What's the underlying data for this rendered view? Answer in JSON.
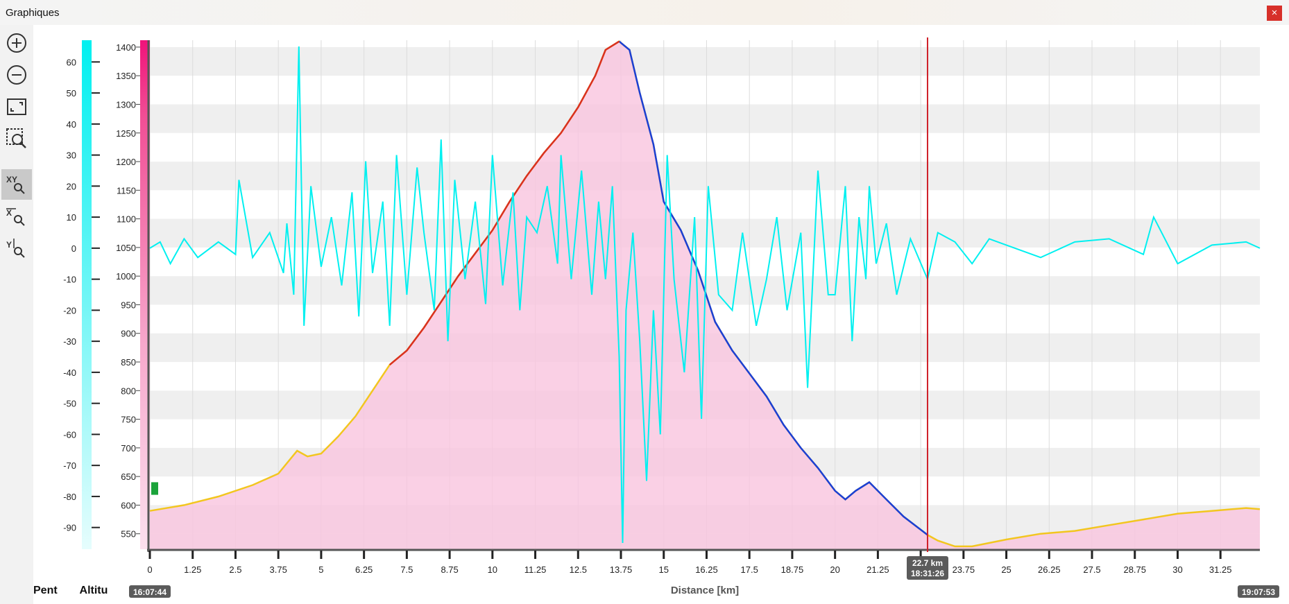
{
  "window": {
    "title": "Graphiques",
    "close_label": "×"
  },
  "toolbar": {
    "tools": [
      {
        "name": "zoom-in"
      },
      {
        "name": "zoom-out"
      },
      {
        "name": "fit-view"
      },
      {
        "name": "zoom-window"
      },
      {
        "name": "zoom-xy",
        "active": true
      },
      {
        "name": "zoom-x"
      },
      {
        "name": "zoom-y"
      }
    ]
  },
  "bottom_tabs": [
    "Pent",
    "Altitu"
  ],
  "chart_data": {
    "type": "area",
    "xlabel": "Distance [km]",
    "x_ticks": [
      "0",
      "1.25",
      "2.5",
      "3.75",
      "5",
      "6.25",
      "7.5",
      "8.75",
      "10",
      "11.25",
      "12.5",
      "13.75",
      "15",
      "16.25",
      "17.5",
      "18.75",
      "20",
      "21.25",
      "22.5",
      "23.75",
      "25",
      "26.25",
      "27.5",
      "28.75",
      "30",
      "31.25"
    ],
    "xlim": [
      0,
      32.4
    ],
    "y_left_ticks": [
      "60",
      "50",
      "40",
      "30",
      "20",
      "10",
      "0",
      "-10",
      "-20",
      "-30",
      "-40",
      "-50",
      "-60",
      "-70",
      "-80",
      "-90"
    ],
    "y_left_lim": [
      -97,
      67
    ],
    "y_right_ticks": [
      "1400",
      "1350",
      "1300",
      "1250",
      "1200",
      "1150",
      "1100",
      "1050",
      "1000",
      "950",
      "900",
      "850",
      "800",
      "750",
      "700",
      "650",
      "600",
      "550"
    ],
    "y_right_lim": [
      523,
      1412
    ],
    "start_time": "16:07:44",
    "end_time": "19:07:53",
    "cursor": {
      "distance": 22.7,
      "distance_label": "22.7 km",
      "time": "18:31:26"
    },
    "series": [
      {
        "color": "#f9c4de",
        "x": [
          0,
          1,
          2,
          3,
          3.75,
          4.3,
          4.6,
          5,
          5.5,
          6,
          6.5,
          7,
          7.5,
          8,
          8.5,
          9,
          9.5,
          10,
          10.5,
          11,
          11.5,
          12,
          12.5,
          13,
          13.3,
          13.7,
          14,
          14.3,
          14.7,
          15,
          15.5,
          16,
          16.5,
          17,
          17.5,
          18,
          18.5,
          19,
          19.5,
          20,
          20.3,
          20.6,
          21,
          21.5,
          22,
          22.7,
          23,
          23.5,
          24,
          25,
          26,
          27,
          28,
          29,
          30,
          31,
          32,
          32.4
        ],
        "y": [
          590,
          600,
          615,
          635,
          655,
          695,
          685,
          690,
          720,
          755,
          800,
          845,
          870,
          910,
          955,
          1000,
          1040,
          1080,
          1130,
          1175,
          1215,
          1250,
          1295,
          1350,
          1395,
          1410,
          1395,
          1320,
          1230,
          1130,
          1080,
          1010,
          920,
          870,
          830,
          790,
          740,
          700,
          665,
          625,
          610,
          625,
          640,
          610,
          580,
          548,
          538,
          528,
          528,
          540,
          550,
          555,
          565,
          575,
          585,
          590,
          595,
          593
        ]
      },
      {
        "color": "#00f0f0",
        "x": [
          0,
          0.3,
          0.6,
          1,
          1.4,
          2,
          2.5,
          2.6,
          3,
          3.5,
          3.9,
          4,
          4.2,
          4.35,
          4.5,
          4.7,
          5,
          5.3,
          5.6,
          5.9,
          6.1,
          6.3,
          6.5,
          6.8,
          7,
          7.2,
          7.5,
          7.8,
          8,
          8.3,
          8.5,
          8.7,
          8.9,
          9.2,
          9.5,
          9.8,
          10,
          10.3,
          10.6,
          10.8,
          11,
          11.3,
          11.6,
          11.9,
          12,
          12.3,
          12.6,
          12.9,
          13.1,
          13.3,
          13.5,
          13.7,
          13.8,
          13.9,
          14.1,
          14.3,
          14.5,
          14.7,
          14.9,
          15.1,
          15.3,
          15.6,
          15.9,
          16.1,
          16.3,
          16.6,
          17,
          17.3,
          17.7,
          18,
          18.3,
          18.6,
          19,
          19.2,
          19.5,
          19.8,
          20,
          20.3,
          20.5,
          20.7,
          20.9,
          21,
          21.2,
          21.5,
          21.8,
          22.2,
          22.7,
          23,
          23.5,
          24,
          24.5,
          25,
          26,
          27,
          28,
          29,
          29.3,
          30,
          31,
          32,
          32.4
        ],
        "y": [
          0,
          2,
          -5,
          3,
          -3,
          2,
          -2,
          22,
          -3,
          5,
          -8,
          8,
          -15,
          65,
          -25,
          20,
          -6,
          10,
          -12,
          18,
          -22,
          28,
          -8,
          15,
          -25,
          30,
          -15,
          26,
          5,
          -20,
          35,
          -30,
          22,
          -10,
          15,
          -18,
          30,
          -12,
          18,
          -20,
          10,
          5,
          20,
          -5,
          30,
          -10,
          25,
          -15,
          15,
          -10,
          20,
          -35,
          -95,
          -20,
          5,
          -30,
          -75,
          -20,
          -60,
          30,
          -10,
          -40,
          10,
          -55,
          20,
          -15,
          -20,
          5,
          -25,
          -10,
          10,
          -20,
          5,
          -45,
          25,
          -15,
          -15,
          20,
          -30,
          10,
          -10,
          20,
          -5,
          8,
          -15,
          3,
          -10,
          5,
          2,
          -5,
          3,
          1,
          -3,
          2,
          3,
          -2,
          10,
          -5,
          1,
          2,
          0
        ]
      }
    ]
  }
}
